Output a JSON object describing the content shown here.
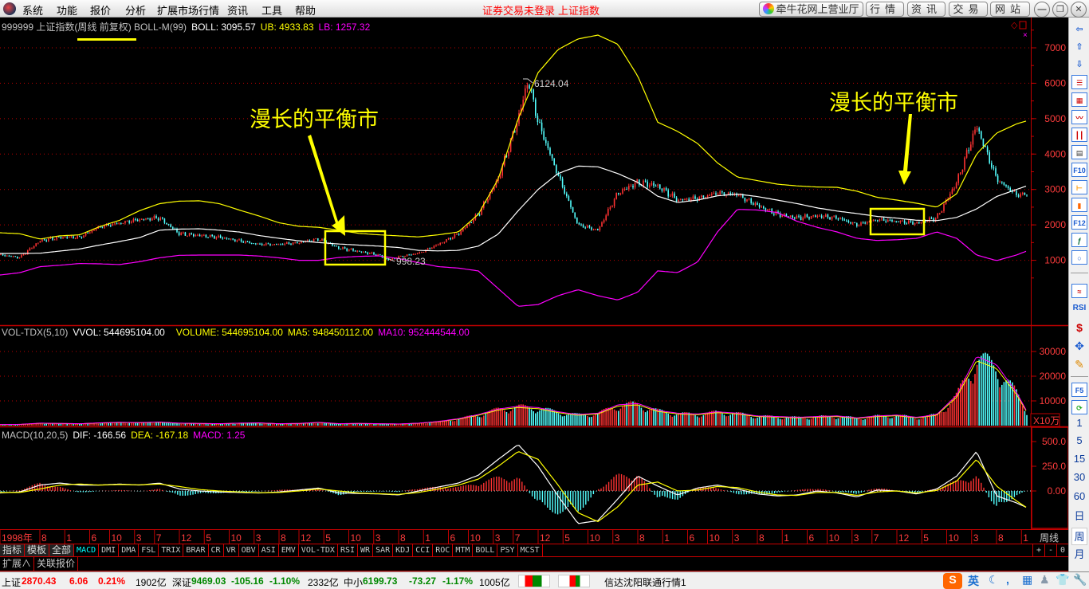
{
  "menubar": {
    "items": [
      "系统",
      "功能",
      "报价",
      "分析",
      "扩展市场行情",
      "资讯",
      "工具",
      "帮助"
    ],
    "login_status": "证券交易未登录",
    "current_index": "上证指数",
    "buttons": [
      "牵牛花网上营业厅",
      "行情",
      "资讯",
      "交易",
      "网站"
    ],
    "window_controls": [
      "minimize-icon",
      "restore-icon",
      "close-icon"
    ]
  },
  "chart_header": {
    "code_name": "999999 上证指数(周线 前复权) BOLL-M(99)",
    "boll": "BOLL: 3095.57",
    "ub": "UB: 4933.83",
    "lb": "LB: 1257.32"
  },
  "annotations": {
    "left_text": "漫长的平衡市",
    "right_text": "漫长的平衡市",
    "peak_label": "6124.04",
    "low_label": "998.23"
  },
  "volume_header": {
    "name": "VOL-TDX(5,10)",
    "vvol": "VVOL: 544695104.00",
    "volume": "VOLUME: 544695104.00",
    "ma5": "MA5: 948450112.00",
    "ma10": "MA10: 952444544.00",
    "unit": "X10万"
  },
  "macd_header": {
    "name": "MACD(10,20,5)",
    "dif": "DIF: -166.56",
    "dea": "DEA: -167.18",
    "macd": "MACD: 1.25"
  },
  "period_label": "周线",
  "indicator_tabs": [
    "指标",
    "模板",
    "全部",
    "MACD",
    "DMI",
    "DMA",
    "FSL",
    "TRIX",
    "BRAR",
    "CR",
    "VR",
    "OBV",
    "ASI",
    "EMV",
    "VOL-TDX",
    "RSI",
    "WR",
    "SAR",
    "KDJ",
    "CCI",
    "ROC",
    "MTM",
    "BOLL",
    "PSY",
    "MCST"
  ],
  "active_tab": "MACD",
  "zoom_controls": [
    "+",
    "-",
    "0"
  ],
  "extra_tabs": [
    "扩展∧",
    "关联报价"
  ],
  "toolbar": {
    "icons": [
      "left-arrow-icon",
      "up-arrow-icon",
      "down-arrow-icon",
      "quote-list-icon",
      "multi-quote-icon",
      "line-chart-icon",
      "candlestick-icon",
      "windows-icon",
      "f10-icon",
      "tree-icon",
      "clipboard-icon",
      "f12-icon",
      "formula-icon",
      "circle-icon",
      "indicator-wave-icon",
      "rsi-icon",
      "stock-s-icon",
      "move-icon",
      "pencil-icon",
      "f5-icon",
      "refresh-icon"
    ],
    "f10": "F10",
    "f12": "F12",
    "rsi": "RSI",
    "f5": "F5",
    "periods": [
      "1",
      "5",
      "15",
      "30",
      "60",
      "日",
      "周",
      "月"
    ],
    "selected_period": "周"
  },
  "status_bar": {
    "sh": {
      "label": "上证",
      "price": "2870.43",
      "change": "6.06",
      "pct": "0.21%",
      "amount": "1902亿"
    },
    "sz": {
      "label": "深证",
      "price": "9469.03",
      "change": "-105.16",
      "pct": "-1.10%",
      "amount": "2332亿"
    },
    "zx": {
      "label": "中小",
      "price": "6199.73",
      "change": "-73.27",
      "pct": "-1.17%",
      "amount": "1005亿"
    },
    "connection": "信达沈阳联通行情1",
    "ime": {
      "lang": "英"
    }
  },
  "colors": {
    "up": "#ff3232",
    "down": "#54ffff",
    "boll_mid": "#ffffff",
    "boll_upper": "#ffff00",
    "boll_lower": "#ff00ff",
    "grid": "#c00000",
    "annotation": "#ffff00"
  },
  "chart_data": [
    {
      "type": "candlestick",
      "name": "BOLL-M(99)",
      "y_ticks": [
        1000,
        2000,
        3000,
        4000,
        5000,
        6000,
        7000
      ],
      "ylim": [
        0,
        8350
      ],
      "grid": true,
      "x_ticks": [
        [
          "1998年",
          "1998-12"
        ],
        [
          "8",
          "1999-08"
        ],
        [
          "1",
          "2000-01"
        ],
        [
          "6",
          "2000-06"
        ],
        [
          "10",
          "2000-10"
        ],
        [
          "3",
          "2001-03"
        ],
        [
          "7",
          "2001-07"
        ],
        [
          "12",
          "2001-12"
        ],
        [
          "5",
          "2002-05"
        ],
        [
          "10",
          "2002-10"
        ],
        [
          "3",
          "2003-03"
        ],
        [
          "8",
          "2003-08"
        ],
        [
          "12",
          "2003-12"
        ],
        [
          "5",
          "2004-05"
        ],
        [
          "10",
          "2004-10"
        ],
        [
          "3",
          "2005-03"
        ],
        [
          "8",
          "2005-08"
        ],
        [
          "1",
          "2006-01"
        ],
        [
          "6",
          "2006-06"
        ],
        [
          "10",
          "2006-10"
        ],
        [
          "3",
          "2007-03"
        ],
        [
          "7",
          "2007-07"
        ],
        [
          "12",
          "2007-12"
        ],
        [
          "5",
          "2008-05"
        ],
        [
          "10",
          "2008-10"
        ],
        [
          "3",
          "2009-03"
        ],
        [
          "8",
          "2009-08"
        ],
        [
          "1",
          "2010-01"
        ],
        [
          "6",
          "2010-06"
        ],
        [
          "10",
          "2010-10"
        ],
        [
          "3",
          "2011-03"
        ],
        [
          "8",
          "2011-08"
        ],
        [
          "1",
          "2012-01"
        ],
        [
          "6",
          "2012-06"
        ],
        [
          "10",
          "2012-10"
        ],
        [
          "3",
          "2013-03"
        ],
        [
          "7",
          "2013-07"
        ],
        [
          "12",
          "2013-12"
        ],
        [
          "5",
          "2014-05"
        ],
        [
          "10",
          "2014-10"
        ],
        [
          "3",
          "2015-03"
        ],
        [
          "8",
          "2015-08"
        ],
        [
          "1",
          "2016-01"
        ]
      ],
      "close": [
        [
          "1998-12",
          1150
        ],
        [
          "1999-04",
          1080
        ],
        [
          "1999-08",
          1550
        ],
        [
          "1999-12",
          1650
        ],
        [
          "2000-04",
          1650
        ],
        [
          "2000-08",
          1950
        ],
        [
          "2000-12",
          2050
        ],
        [
          "2001-04",
          2150
        ],
        [
          "2001-08",
          2200
        ],
        [
          "2001-12",
          1750
        ],
        [
          "2002-04",
          1700
        ],
        [
          "2002-08",
          1650
        ],
        [
          "2002-12",
          1550
        ],
        [
          "2003-04",
          1450
        ],
        [
          "2003-08",
          1450
        ],
        [
          "2003-12",
          1500
        ],
        [
          "2004-04",
          1600
        ],
        [
          "2004-08",
          1350
        ],
        [
          "2004-12",
          1250
        ],
        [
          "2005-04",
          1150
        ],
        [
          "2005-06",
          1000
        ],
        [
          "2005-08",
          1100
        ],
        [
          "2005-12",
          1200
        ],
        [
          "2006-04",
          1450
        ],
        [
          "2006-08",
          1750
        ],
        [
          "2006-12",
          2300
        ],
        [
          "2007-04",
          3300
        ],
        [
          "2007-08",
          5000
        ],
        [
          "2007-10",
          6100
        ],
        [
          "2007-12",
          4900
        ],
        [
          "2008-04",
          3400
        ],
        [
          "2008-08",
          2000
        ],
        [
          "2008-12",
          1850
        ],
        [
          "2009-04",
          2900
        ],
        [
          "2009-08",
          3200
        ],
        [
          "2009-12",
          3100
        ],
        [
          "2010-04",
          2700
        ],
        [
          "2010-08",
          2750
        ],
        [
          "2010-12",
          2900
        ],
        [
          "2011-04",
          2850
        ],
        [
          "2011-08",
          2550
        ],
        [
          "2011-12",
          2300
        ],
        [
          "2012-04",
          2200
        ],
        [
          "2012-08",
          2250
        ],
        [
          "2012-12",
          2200
        ],
        [
          "2013-04",
          2000
        ],
        [
          "2013-08",
          2150
        ],
        [
          "2013-12",
          2100
        ],
        [
          "2014-04",
          2050
        ],
        [
          "2014-08",
          2200
        ],
        [
          "2014-12",
          3200
        ],
        [
          "2015-04",
          4800
        ],
        [
          "2015-08",
          3300
        ],
        [
          "2015-12",
          2850
        ],
        [
          "2016-02",
          2870
        ]
      ],
      "boll_dates": [
        "1998-12",
        "1999-04",
        "1999-08",
        "1999-12",
        "2000-04",
        "2000-08",
        "2000-12",
        "2001-04",
        "2001-08",
        "2001-12",
        "2002-04",
        "2002-08",
        "2002-12",
        "2003-04",
        "2003-08",
        "2003-12",
        "2004-04",
        "2004-08",
        "2004-12",
        "2005-04",
        "2005-08",
        "2005-12",
        "2006-04",
        "2006-08",
        "2006-12",
        "2007-04",
        "2007-08",
        "2007-12",
        "2008-04",
        "2008-08",
        "2008-12",
        "2009-04",
        "2009-08",
        "2009-12",
        "2010-04",
        "2010-08",
        "2010-12",
        "2011-04",
        "2011-08",
        "2011-12",
        "2012-04",
        "2012-08",
        "2012-12",
        "2013-04",
        "2013-08",
        "2013-12",
        "2014-04",
        "2014-08",
        "2014-12",
        "2015-04",
        "2015-08",
        "2015-12",
        "2016-02"
      ],
      "series": [
        {
          "name": "UB",
          "values": [
            1778,
            1750,
            1600,
            1690,
            1720,
            1950,
            2130,
            2400,
            2600,
            2670,
            2680,
            2600,
            2420,
            2250,
            2060,
            1960,
            1930,
            1850,
            1760,
            1720,
            1690,
            1660,
            1720,
            1800,
            2300,
            3300,
            5000,
            6300,
            6950,
            7250,
            7360,
            7100,
            6200,
            4900,
            4640,
            4300,
            3750,
            3350,
            3250,
            3150,
            3100,
            3070,
            3060,
            2950,
            2780,
            2700,
            2610,
            2500,
            2880,
            4000,
            4590,
            4850,
            4934
          ]
        },
        {
          "name": "BOLL",
          "values": [
            1193,
            1193,
            1200,
            1260,
            1320,
            1430,
            1530,
            1640,
            1850,
            1880,
            1890,
            1850,
            1800,
            1700,
            1620,
            1550,
            1500,
            1460,
            1430,
            1400,
            1360,
            1280,
            1265,
            1280,
            1400,
            1740,
            2400,
            3000,
            3450,
            3660,
            3640,
            3450,
            3200,
            2810,
            2633,
            2700,
            2820,
            2870,
            2800,
            2700,
            2600,
            2480,
            2390,
            2320,
            2240,
            2190,
            2130,
            2120,
            2210,
            2450,
            2800,
            3000,
            3096
          ]
        },
        {
          "name": "LB",
          "values": [
            585,
            650,
            820,
            860,
            910,
            900,
            880,
            960,
            1070,
            1140,
            1148,
            1148,
            1148,
            1120,
            1070,
            1000,
            1000,
            1080,
            1110,
            1125,
            1050,
            930,
            820,
            780,
            700,
            200,
            -300,
            -250,
            0,
            170,
            0,
            -120,
            100,
            700,
            653,
            950,
            1800,
            2440,
            2420,
            2350,
            2100,
            1930,
            1800,
            1620,
            1560,
            1580,
            1620,
            1800,
            1620,
            1150,
            990,
            1150,
            1257
          ]
        }
      ]
    },
    {
      "type": "bar",
      "name": "VOL-TDX(5,10)",
      "unit": "X10万",
      "y_ticks": [
        10000,
        20000,
        30000
      ],
      "values": [
        400,
        450,
        900,
        800,
        700,
        1000,
        1200,
        1100,
        1300,
        900,
        800,
        700,
        900,
        1000,
        700,
        800,
        1200,
        700,
        800,
        700,
        600,
        900,
        1500,
        2500,
        4000,
        6000,
        7000,
        6500,
        5000,
        4000,
        4500,
        7500,
        8000,
        5500,
        4500,
        4200,
        5000,
        4500,
        3500,
        3300,
        3000,
        3300,
        3500,
        2800,
        3500,
        3800,
        3000,
        4000,
        11000,
        25000,
        22000,
        12000,
        5447
      ]
    },
    {
      "type": "line",
      "name": "MACD(10,20,5)",
      "y_ticks": [
        0,
        250,
        500
      ],
      "y_tick_labels": [
        "0.00",
        "250.0",
        "500.0"
      ],
      "series": [
        {
          "name": "DIF",
          "values": [
            -20,
            -10,
            60,
            80,
            60,
            60,
            70,
            60,
            80,
            20,
            0,
            -10,
            -15,
            -20,
            -10,
            10,
            30,
            -20,
            -25,
            -30,
            -40,
            0,
            40,
            80,
            160,
            320,
            470,
            250,
            -50,
            -330,
            -300,
            -80,
            150,
            50,
            -40,
            30,
            60,
            20,
            -30,
            -50,
            -40,
            0,
            -20,
            -60,
            10,
            0,
            -30,
            20,
            150,
            400,
            -50,
            -120,
            -166.56
          ]
        },
        {
          "name": "DEA",
          "values": [
            -15,
            -15,
            20,
            60,
            70,
            60,
            65,
            62,
            70,
            45,
            15,
            0,
            -10,
            -18,
            -15,
            0,
            20,
            0,
            -20,
            -28,
            -35,
            -15,
            20,
            60,
            120,
            250,
            400,
            320,
            60,
            -220,
            -310,
            -160,
            60,
            90,
            0,
            10,
            45,
            35,
            -10,
            -40,
            -45,
            -15,
            -15,
            -45,
            -10,
            0,
            -20,
            5,
            100,
            320,
            50,
            -100,
            -167.18
          ]
        }
      ]
    }
  ]
}
